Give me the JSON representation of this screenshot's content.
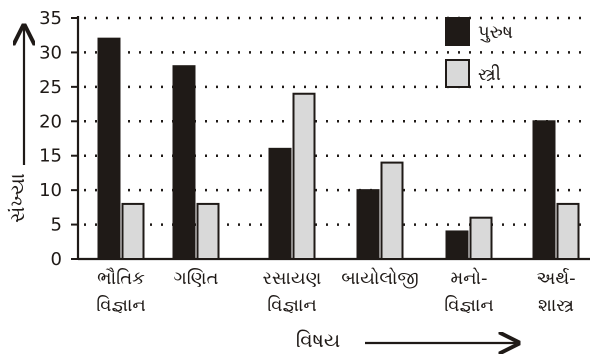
{
  "chart_data": {
    "type": "bar",
    "categories": [
      [
        "ભૌતિક",
        "વિજ્ઞાન"
      ],
      [
        "ગણિત"
      ],
      [
        "રસાયણ",
        "વિજ્ઞાન"
      ],
      [
        "બાયોલોજી"
      ],
      [
        "મનો-",
        "વિજ્ઞાન"
      ],
      [
        "અર્થ-",
        "શાસ્ત્ર"
      ]
    ],
    "series": [
      {
        "name": "પુરુષ",
        "values": [
          32,
          28,
          16,
          10,
          4,
          20
        ],
        "color": "#1f1a17"
      },
      {
        "name": "સ્ત્રી",
        "values": [
          8,
          8,
          24,
          14,
          6,
          8
        ],
        "color": "#d9d9d9"
      }
    ],
    "xlabel": "વિષય",
    "ylabel": "સંખ્યા",
    "ylim": [
      0,
      35
    ],
    "yticks": [
      0,
      5,
      10,
      15,
      20,
      25,
      30,
      35
    ],
    "grid": true,
    "legend_position": "top-right"
  }
}
